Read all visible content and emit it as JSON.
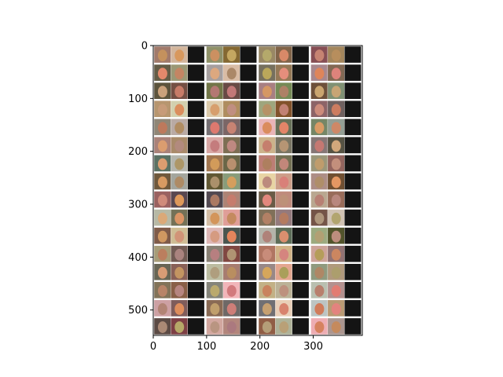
{
  "chart_data": {
    "type": "image",
    "xlim": [
      0,
      392
    ],
    "ylim": [
      548,
      0
    ],
    "x_ticks": [
      {
        "value": 0,
        "label": "0"
      },
      {
        "value": 100,
        "label": "100"
      },
      {
        "value": 200,
        "label": "200"
      },
      {
        "value": 300,
        "label": "300"
      }
    ],
    "y_ticks": [
      {
        "value": 0,
        "label": "0"
      },
      {
        "value": 100,
        "label": "100"
      },
      {
        "value": 200,
        "label": "200"
      },
      {
        "value": 300,
        "label": "300"
      },
      {
        "value": 400,
        "label": "400"
      },
      {
        "value": 500,
        "label": "500"
      }
    ],
    "grid": false,
    "grid_rows": 16,
    "grid_cols": 4,
    "tiles_per_cell": 3,
    "separator_color": "#ffffff",
    "noise_tile_color": "#141414"
  }
}
